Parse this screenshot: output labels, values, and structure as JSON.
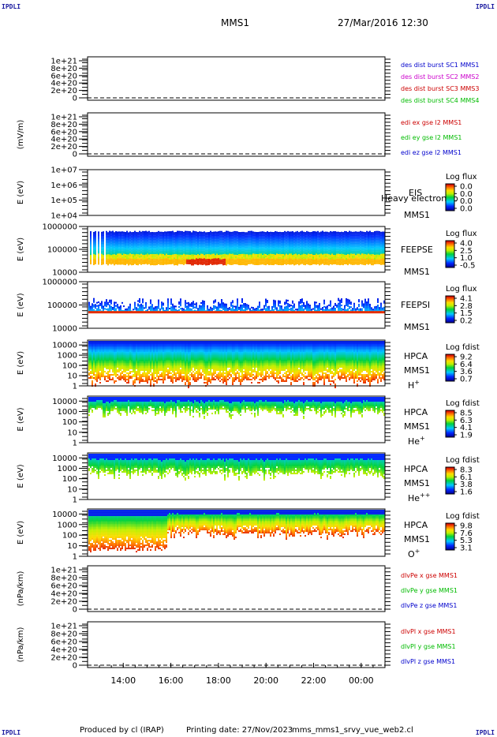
{
  "corners": {
    "top_left": "IPDLI",
    "top_right": "IPDLI",
    "bottom_left": "IPDLI",
    "bottom_right": "IPDLI"
  },
  "header": {
    "spacecraft": "MMS1",
    "datetime": "27/Mar/2016 12:30"
  },
  "footer": {
    "produced_by": "Produced by cl (IRAP)",
    "printing_date": "Printing date: 27/Nov/2023",
    "file_name": "mms_mms1_srvy_vue_web2.cl"
  },
  "colors": {
    "series_red": "#cc0000",
    "series_green": "#00bb00",
    "series_blue": "#0000cc",
    "series_magenta": "#cc00cc",
    "spectrogram_colormap": "rainbow (blue→cyan→green→yellow→red)"
  },
  "chart_data": [
    {
      "type": "line",
      "panel": "des-dist",
      "ylabel": "",
      "ytick_labels": [
        "1e+21",
        "8e+20",
        "6e+20",
        "4e+20",
        "2e+20",
        "0"
      ],
      "ylim": [
        0,
        1e+21
      ],
      "legend": [
        "des dist burst SC1 MMS1",
        "des dist burst SC2 MMS2",
        "des dist burst SC3 MMS3",
        "des dist burst SC4 MMS4"
      ],
      "legend_colors": [
        "#0000cc",
        "#cc00cc",
        "#cc0000",
        "#00bb00"
      ],
      "series": [],
      "reference_line": 0
    },
    {
      "type": "line",
      "panel": "edi",
      "ylabel": "(mV/m)",
      "ytick_labels": [
        "1e+21",
        "8e+20",
        "6e+20",
        "4e+20",
        "2e+20",
        "0"
      ],
      "ylim": [
        0,
        1e+21
      ],
      "legend": [
        "edi ex gse l2 MMS1",
        "edi ey gse l2 MMS1",
        "edi ez gse l2 MMS1"
      ],
      "legend_colors": [
        "#cc0000",
        "#00bb00",
        "#0000cc"
      ],
      "series": [],
      "reference_line": 0
    },
    {
      "type": "heatmap",
      "panel": "eis",
      "ylabel": "E (eV)",
      "yscale": "log",
      "ytick_labels": [
        "1e+07",
        "1e+06",
        "1e+05",
        "1e+04"
      ],
      "ylim": [
        10000,
        10000000
      ],
      "instrument_label": [
        "EIS",
        "MMS1"
      ],
      "overlay_text": "Heavy electron to",
      "colorbar": {
        "title": "Log flux",
        "tick_labels": [
          "0.0",
          "0.0",
          "0.0",
          "0.0"
        ]
      },
      "data": "empty"
    },
    {
      "type": "heatmap",
      "panel": "feeps-e",
      "ylabel": "E (eV)",
      "yscale": "log",
      "ytick_labels": [
        "1000000",
        "100000",
        "10000"
      ],
      "ylim": [
        10000,
        1000000
      ],
      "instrument_label": [
        "FEEPSE",
        "MMS1"
      ],
      "colorbar": {
        "title": "Log flux",
        "tick_labels": [
          "4.0",
          "2.5",
          "1.0",
          "-0.5"
        ]
      }
    },
    {
      "type": "heatmap",
      "panel": "feeps-i",
      "ylabel": "E (eV)",
      "yscale": "log",
      "ytick_labels": [
        "1000000",
        "100000",
        "10000"
      ],
      "ylim": [
        10000,
        1000000
      ],
      "instrument_label": [
        "FEEPSI",
        "MMS1"
      ],
      "colorbar": {
        "title": "Log flux",
        "tick_labels": [
          "4.1",
          "2.8",
          "1.5",
          "0.2"
        ]
      }
    },
    {
      "type": "heatmap",
      "panel": "hpca-h",
      "ylabel": "E (eV)",
      "yscale": "log",
      "ytick_labels": [
        "10000",
        "1000",
        "100",
        "10",
        "1"
      ],
      "ylim": [
        1,
        30000
      ],
      "instrument_label": [
        "HPCA",
        "MMS1"
      ],
      "species": "H",
      "species_charge": "+",
      "colorbar": {
        "title": "Log fdist",
        "tick_labels": [
          "9.2",
          "6.4",
          "3.6",
          "0.7"
        ]
      }
    },
    {
      "type": "heatmap",
      "panel": "hpca-he1",
      "ylabel": "E (eV)",
      "yscale": "log",
      "ytick_labels": [
        "10000",
        "1000",
        "100",
        "10",
        "1"
      ],
      "ylim": [
        1,
        30000
      ],
      "instrument_label": [
        "HPCA",
        "MMS1"
      ],
      "species": "He",
      "species_charge": "+",
      "colorbar": {
        "title": "Log fdist",
        "tick_labels": [
          "8.5",
          "6.3",
          "4.1",
          "1.9"
        ]
      }
    },
    {
      "type": "heatmap",
      "panel": "hpca-he2",
      "ylabel": "E (eV)",
      "yscale": "log",
      "ytick_labels": [
        "10000",
        "1000",
        "100",
        "10",
        "1"
      ],
      "ylim": [
        1,
        30000
      ],
      "instrument_label": [
        "HPCA",
        "MMS1"
      ],
      "species": "He",
      "species_charge": "++",
      "colorbar": {
        "title": "Log fdist",
        "tick_labels": [
          "8.3",
          "6.1",
          "3.8",
          "1.6"
        ]
      }
    },
    {
      "type": "heatmap",
      "panel": "hpca-o",
      "ylabel": "E (eV)",
      "yscale": "log",
      "ytick_labels": [
        "10000",
        "1000",
        "100",
        "10",
        "1"
      ],
      "ylim": [
        1,
        30000
      ],
      "instrument_label": [
        "HPCA",
        "MMS1"
      ],
      "species": "O",
      "species_charge": "+",
      "colorbar": {
        "title": "Log fdist",
        "tick_labels": [
          "9.8",
          "7.6",
          "5.3",
          "3.1"
        ]
      }
    },
    {
      "type": "line",
      "panel": "divpe",
      "ylabel": "(nPa/km)",
      "ytick_labels": [
        "1e+21",
        "8e+20",
        "6e+20",
        "4e+20",
        "2e+20",
        "0"
      ],
      "ylim": [
        0,
        1e+21
      ],
      "legend": [
        "dlvPe x gse MMS1",
        "dlvPe y gse MMS1",
        "dlvPe z gse MMS1"
      ],
      "legend_colors": [
        "#cc0000",
        "#00bb00",
        "#0000cc"
      ],
      "series": [],
      "reference_line": 0
    },
    {
      "type": "line",
      "panel": "divpi",
      "ylabel": "(nPa/km)",
      "ytick_labels": [
        "1e+21",
        "8e+20",
        "6e+20",
        "4e+20",
        "2e+20",
        "0"
      ],
      "ylim": [
        0,
        1e+21
      ],
      "legend": [
        "dlvPl x gse MMS1",
        "dlvPl y gse MMS1",
        "dlvPl z gse MMS1"
      ],
      "legend_colors": [
        "#cc0000",
        "#00bb00",
        "#0000cc"
      ],
      "series": [],
      "reference_line": 0
    }
  ],
  "time_axis": {
    "tick_labels": [
      "14:00",
      "16:00",
      "18:00",
      "20:00",
      "22:00",
      "00:00"
    ],
    "start": "12:30",
    "end": "01:00"
  }
}
